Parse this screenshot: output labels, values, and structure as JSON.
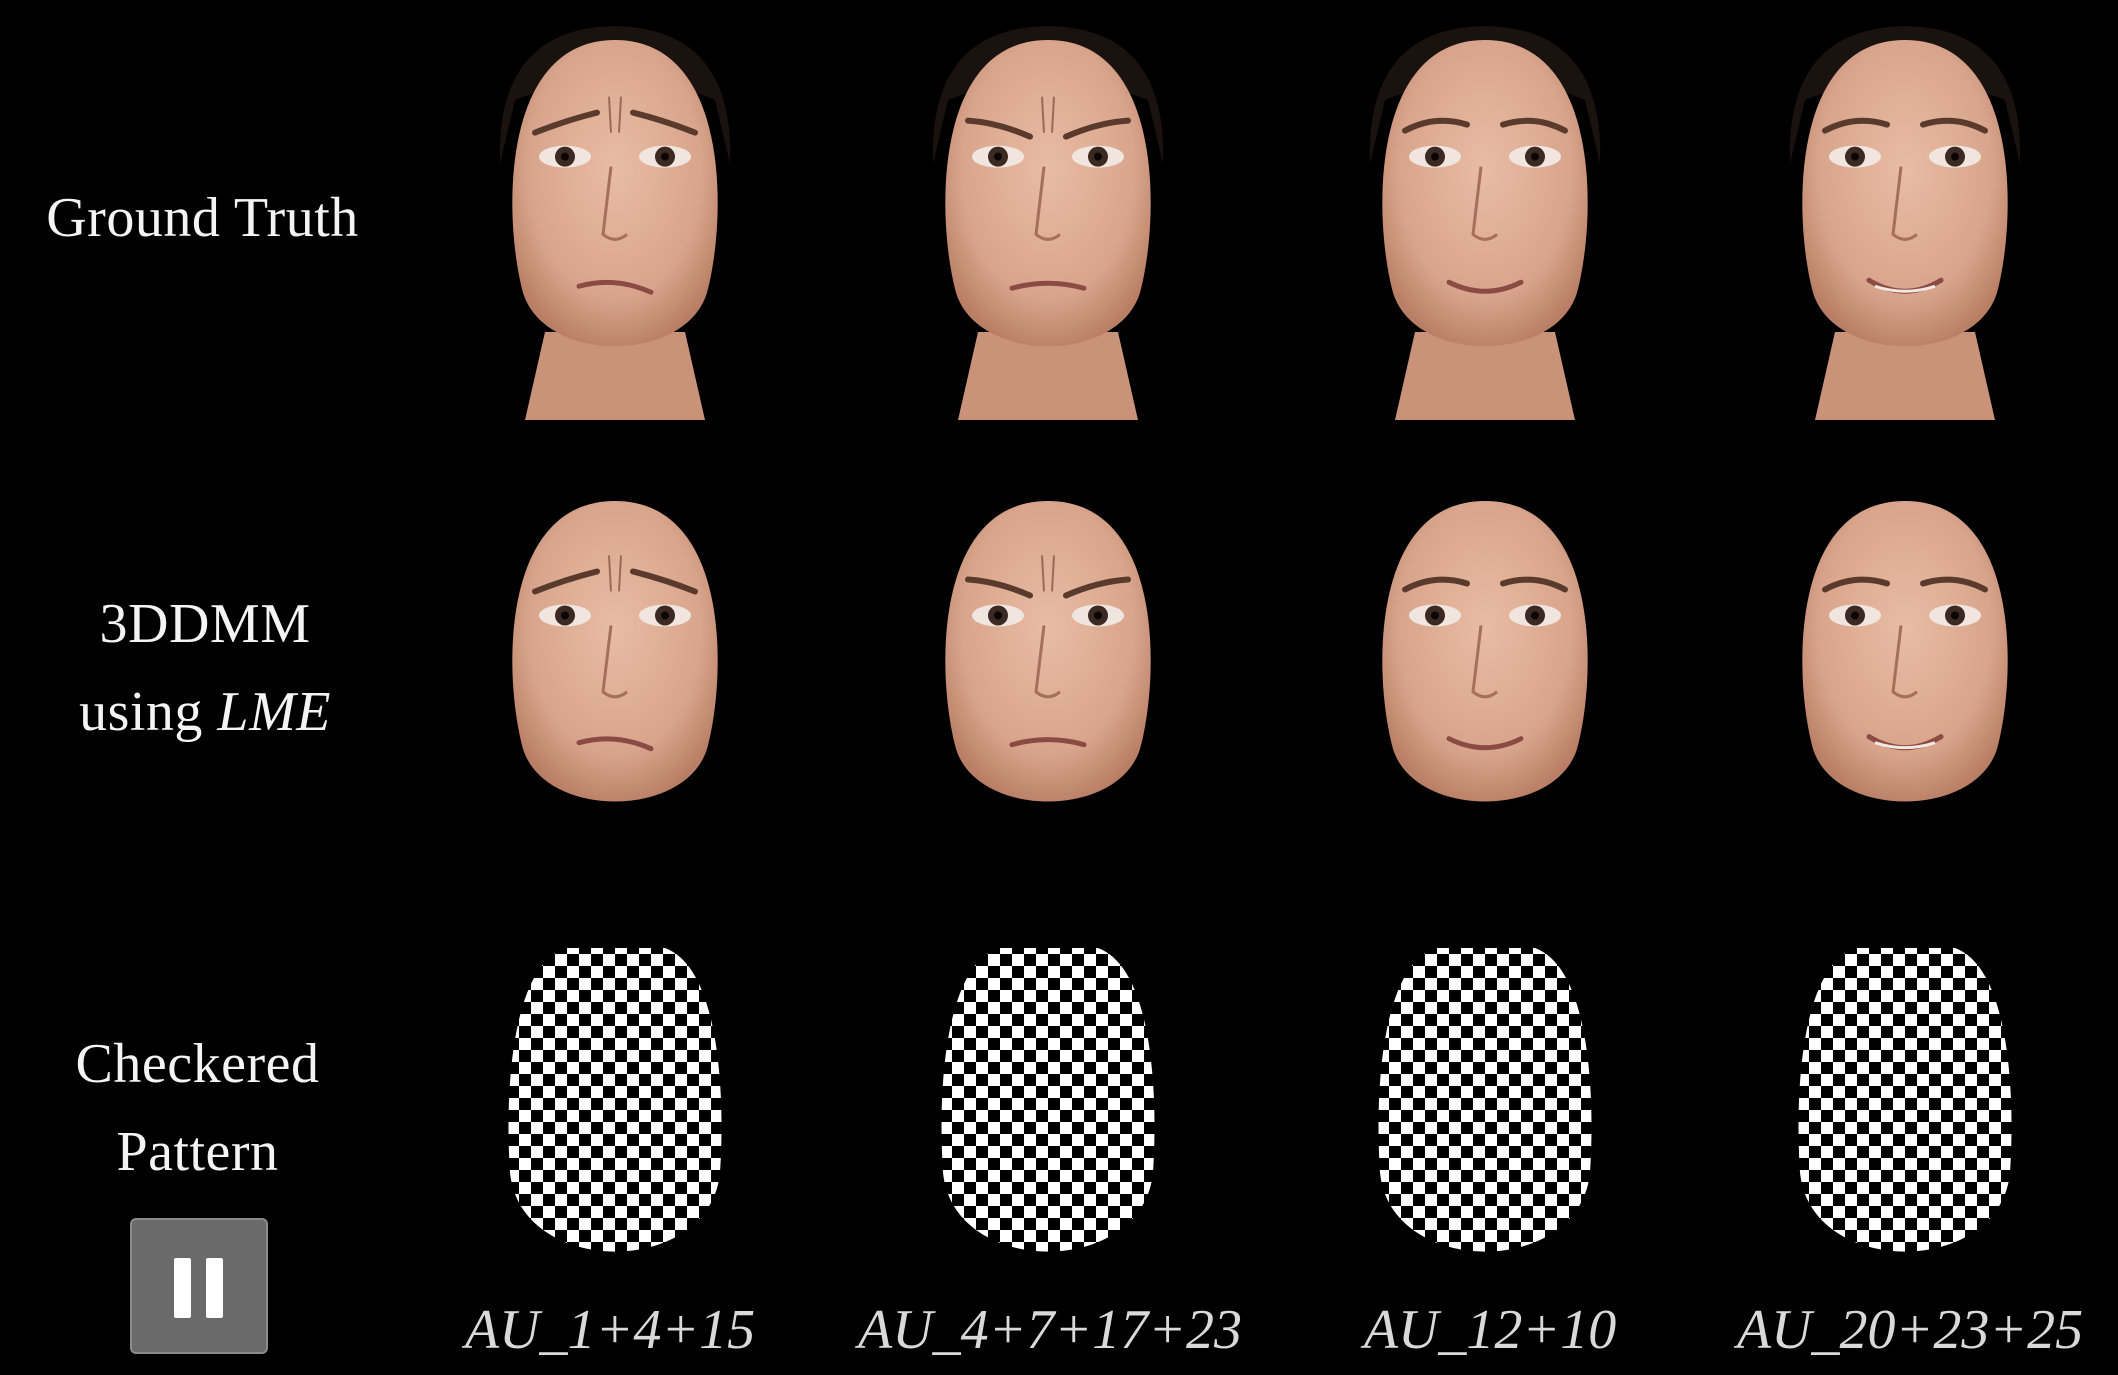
{
  "rows": {
    "ground_truth": "Ground Truth",
    "model_line1": "3DDMM",
    "model_line2_prefix": "using ",
    "model_line2_italic": "LME",
    "checker_line1": "Checkered",
    "checker_line2": "Pattern"
  },
  "columns": [
    {
      "au_label": "AU_1+4+15",
      "expression": "sad"
    },
    {
      "au_label": "AU_4+7+17+23",
      "expression": "angry"
    },
    {
      "au_label": "AU_12+10",
      "expression": "slight-smile"
    },
    {
      "au_label": "AU_20+23+25",
      "expression": "grimace-smile"
    }
  ],
  "controls": {
    "pause_icon": "pause-icon"
  },
  "colors": {
    "background": "#000000",
    "skin": "#d8a58c",
    "label_text": "#f2f2f2",
    "button": "#6a6a6a"
  }
}
